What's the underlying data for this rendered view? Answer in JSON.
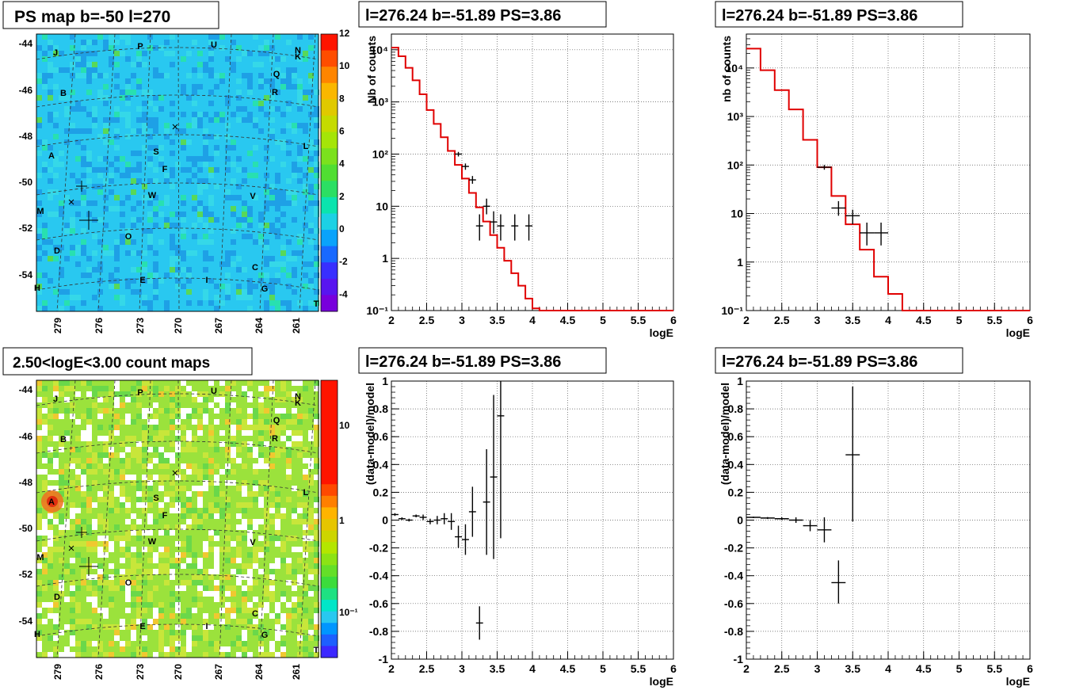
{
  "panels": {
    "ps_map": {
      "title": "PS map b=-50 l=270",
      "lat_ticks": [
        "-44",
        "-46",
        "-48",
        "-50",
        "-52",
        "-54"
      ],
      "lon_ticks": [
        "279",
        "276",
        "273",
        "270",
        "267",
        "264",
        "261"
      ],
      "colorbar_ticks": [
        "12",
        "10",
        "8",
        "6",
        "4",
        "2",
        "0",
        "-2",
        "-4"
      ],
      "colorbar_range": [
        -5,
        12
      ],
      "background_color": "#29c8f0"
    },
    "count_map": {
      "title": "2.50<logE<3.00 count maps",
      "lat_ticks": [
        "-44",
        "-46",
        "-48",
        "-50",
        "-52",
        "-54"
      ],
      "lon_ticks": [
        "279",
        "276",
        "273",
        "270",
        "267",
        "264",
        "261"
      ],
      "colorbar_ticks": [
        "10",
        "1",
        "10⁻¹"
      ],
      "background_color": "#9be23c"
    },
    "sources": [
      {
        "name": "J"
      },
      {
        "name": "P"
      },
      {
        "name": "U"
      },
      {
        "name": "N"
      },
      {
        "name": "K"
      },
      {
        "name": "Q"
      },
      {
        "name": "B"
      },
      {
        "name": "R"
      },
      {
        "name": "L"
      },
      {
        "name": "A"
      },
      {
        "name": "S"
      },
      {
        "name": "F"
      },
      {
        "name": "W"
      },
      {
        "name": "V"
      },
      {
        "name": "M"
      },
      {
        "name": "O"
      },
      {
        "name": "D"
      },
      {
        "name": "C"
      },
      {
        "name": "E"
      },
      {
        "name": "I"
      },
      {
        "name": "G"
      },
      {
        "name": "H"
      },
      {
        "name": "T"
      }
    ]
  },
  "chart_data": [
    {
      "type": "line",
      "title": "l=276.24 b=-51.89 PS=3.86",
      "xlabel": "logE",
      "ylabel": "Nb of counts",
      "xlim": [
        2,
        6
      ],
      "ylim": [
        0.1,
        20000
      ],
      "yscale": "log",
      "grid": true,
      "x_ticks": [
        "2",
        "2.5",
        "3",
        "3.5",
        "4",
        "4.5",
        "5",
        "5.5",
        "6"
      ],
      "y_ticks": [
        "10⁴",
        "10³",
        "10²",
        "10",
        "1",
        "10⁻¹"
      ],
      "model_color": "#e00000",
      "model_bin_edges": [
        2.0,
        2.1,
        2.2,
        2.3,
        2.4,
        2.5,
        2.6,
        2.7,
        2.8,
        2.9,
        3.0,
        3.1,
        3.2,
        3.3,
        3.4,
        3.5,
        3.6,
        3.7,
        3.8,
        3.9,
        4.0,
        4.1,
        6.0
      ],
      "model_values": [
        11000,
        7500,
        4500,
        2600,
        1400,
        700,
        380,
        210,
        115,
        62,
        34,
        18,
        9.5,
        5.1,
        2.8,
        1.6,
        0.9,
        0.52,
        0.3,
        0.17,
        0.11,
        0.1
      ],
      "data_points": [
        {
          "x": 2.95,
          "y": 100,
          "ylo": 90,
          "yhi": 110,
          "xerr": 0.05
        },
        {
          "x": 3.05,
          "y": 58,
          "ylo": 50,
          "yhi": 66,
          "xerr": 0.05
        },
        {
          "x": 3.15,
          "y": 32,
          "ylo": 27,
          "yhi": 38,
          "xerr": 0.05
        },
        {
          "x": 3.25,
          "y": 4.2,
          "ylo": 2.2,
          "yhi": 7.0,
          "xerr": 0.05
        },
        {
          "x": 3.35,
          "y": 10,
          "ylo": 7,
          "yhi": 14,
          "xerr": 0.05
        },
        {
          "x": 3.45,
          "y": 5,
          "ylo": 3,
          "yhi": 8,
          "xerr": 0.05
        },
        {
          "x": 3.55,
          "y": 4.2,
          "ylo": 2.2,
          "yhi": 7.0,
          "xerr": 0.05
        },
        {
          "x": 3.75,
          "y": 4.2,
          "ylo": 2.2,
          "yhi": 7.0,
          "xerr": 0.05
        },
        {
          "x": 3.95,
          "y": 4.2,
          "ylo": 2.2,
          "yhi": 7.0,
          "xerr": 0.05
        }
      ]
    },
    {
      "type": "line",
      "title": "l=276.24 b=-51.89 PS=3.86",
      "xlabel": "logE",
      "ylabel": "nb of counts",
      "xlim": [
        2,
        6
      ],
      "ylim": [
        0.1,
        50000
      ],
      "yscale": "log",
      "grid": true,
      "x_ticks": [
        "2",
        "2.5",
        "3",
        "3.5",
        "4",
        "4.5",
        "5",
        "5.5",
        "6"
      ],
      "y_ticks": [
        "10⁴",
        "10³",
        "10²",
        "10",
        "1",
        "10⁻¹"
      ],
      "model_color": "#e00000",
      "model_bin_edges": [
        2.0,
        2.2,
        2.4,
        2.6,
        2.8,
        3.0,
        3.2,
        3.4,
        3.6,
        3.8,
        4.0,
        4.2,
        6.0
      ],
      "model_values": [
        25000,
        9000,
        3500,
        1400,
        330,
        90,
        23,
        6,
        1.8,
        0.5,
        0.22,
        0.1
      ],
      "data_points": [
        {
          "x": 3.1,
          "y": 90,
          "ylo": 80,
          "yhi": 100,
          "xerr": 0.1
        },
        {
          "x": 3.3,
          "y": 13,
          "ylo": 9,
          "yhi": 18,
          "xerr": 0.1
        },
        {
          "x": 3.5,
          "y": 9,
          "ylo": 6,
          "yhi": 12,
          "xerr": 0.1
        },
        {
          "x": 3.7,
          "y": 4,
          "ylo": 2.2,
          "yhi": 6.5,
          "xerr": 0.1
        },
        {
          "x": 3.9,
          "y": 4,
          "ylo": 2.2,
          "yhi": 6.5,
          "xerr": 0.1
        }
      ]
    },
    {
      "type": "scatter",
      "title": "l=276.24 b=-51.89 PS=3.86",
      "xlabel": "logE",
      "ylabel": "(data-model)/model",
      "xlim": [
        2,
        6
      ],
      "ylim": [
        -1,
        1
      ],
      "grid": true,
      "x_ticks": [
        "2",
        "2.5",
        "3",
        "3.5",
        "4",
        "4.5",
        "5",
        "5.5",
        "6"
      ],
      "y_ticks": [
        "1",
        "0.8",
        "0.6",
        "0.4",
        "0.2",
        "0",
        "-0.2",
        "-0.4",
        "-0.6",
        "-0.8",
        "-1"
      ],
      "data_points": [
        {
          "x": 2.05,
          "y": 0.04,
          "ylo": 0.03,
          "yhi": 0.05,
          "xerr": 0.05
        },
        {
          "x": 2.15,
          "y": 0.01,
          "ylo": 0.0,
          "yhi": 0.02,
          "xerr": 0.05
        },
        {
          "x": 2.25,
          "y": 0.0,
          "ylo": -0.01,
          "yhi": 0.01,
          "xerr": 0.05
        },
        {
          "x": 2.35,
          "y": 0.03,
          "ylo": 0.02,
          "yhi": 0.04,
          "xerr": 0.05
        },
        {
          "x": 2.45,
          "y": 0.02,
          "ylo": 0.0,
          "yhi": 0.04,
          "xerr": 0.05
        },
        {
          "x": 2.55,
          "y": -0.01,
          "ylo": -0.03,
          "yhi": 0.01,
          "xerr": 0.05
        },
        {
          "x": 2.65,
          "y": 0.0,
          "ylo": -0.03,
          "yhi": 0.03,
          "xerr": 0.05
        },
        {
          "x": 2.75,
          "y": 0.01,
          "ylo": -0.03,
          "yhi": 0.05,
          "xerr": 0.05
        },
        {
          "x": 2.85,
          "y": -0.01,
          "ylo": -0.07,
          "yhi": 0.05,
          "xerr": 0.05
        },
        {
          "x": 2.95,
          "y": -0.12,
          "ylo": -0.2,
          "yhi": -0.04,
          "xerr": 0.05
        },
        {
          "x": 3.05,
          "y": -0.14,
          "ylo": -0.25,
          "yhi": -0.03,
          "xerr": 0.05
        },
        {
          "x": 3.15,
          "y": 0.06,
          "ylo": -0.12,
          "yhi": 0.24,
          "xerr": 0.05
        },
        {
          "x": 3.25,
          "y": -0.74,
          "ylo": -0.86,
          "yhi": -0.62,
          "xerr": 0.05
        },
        {
          "x": 3.35,
          "y": 0.13,
          "ylo": -0.25,
          "yhi": 0.51,
          "xerr": 0.05
        },
        {
          "x": 3.45,
          "y": 0.31,
          "ylo": -0.28,
          "yhi": 0.9,
          "xerr": 0.05
        },
        {
          "x": 3.55,
          "y": 0.75,
          "ylo": -0.13,
          "yhi": 1.0,
          "xerr": 0.05
        }
      ]
    },
    {
      "type": "scatter",
      "title": "l=276.24 b=-51.89 PS=3.86",
      "xlabel": "logE",
      "ylabel": "(data-model)/model",
      "xlim": [
        2,
        6
      ],
      "ylim": [
        -1,
        1
      ],
      "grid": true,
      "x_ticks": [
        "2",
        "2.5",
        "3",
        "3.5",
        "4",
        "4.5",
        "5",
        "5.5",
        "6"
      ],
      "y_ticks": [
        "1",
        "0.8",
        "0.6",
        "0.4",
        "0.2",
        "0",
        "-0.2",
        "-0.4",
        "-0.6",
        "-0.8",
        "-1"
      ],
      "data_points": [
        {
          "x": 2.1,
          "y": 0.02,
          "ylo": 0.015,
          "yhi": 0.025,
          "xerr": 0.1
        },
        {
          "x": 2.3,
          "y": 0.015,
          "ylo": 0.008,
          "yhi": 0.022,
          "xerr": 0.1
        },
        {
          "x": 2.5,
          "y": 0.01,
          "ylo": 0.0,
          "yhi": 0.02,
          "xerr": 0.1
        },
        {
          "x": 2.7,
          "y": 0.0,
          "ylo": -0.02,
          "yhi": 0.02,
          "xerr": 0.1
        },
        {
          "x": 2.9,
          "y": -0.04,
          "ylo": -0.08,
          "yhi": 0.0,
          "xerr": 0.1
        },
        {
          "x": 3.1,
          "y": -0.07,
          "ylo": -0.16,
          "yhi": 0.02,
          "xerr": 0.1
        },
        {
          "x": 3.3,
          "y": -0.45,
          "ylo": -0.6,
          "yhi": -0.29,
          "xerr": 0.1
        },
        {
          "x": 3.5,
          "y": 0.47,
          "ylo": -0.01,
          "yhi": 0.96,
          "xerr": 0.1
        }
      ]
    }
  ]
}
